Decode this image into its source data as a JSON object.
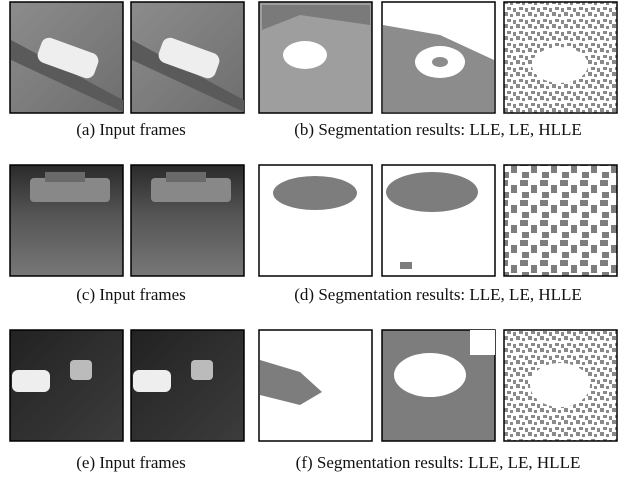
{
  "rows": [
    {
      "input_caption": "(a) Input frames",
      "result_caption": "(b) Segmentation results: LLE, LE, HLLE"
    },
    {
      "input_caption": "(c) Input frames",
      "result_caption": "(d) Segmentation results: LLE, LE, HLLE"
    },
    {
      "input_caption": "(e) Input frames",
      "result_caption": "(f) Segmentation results: LLE, LE, HLLE"
    }
  ]
}
